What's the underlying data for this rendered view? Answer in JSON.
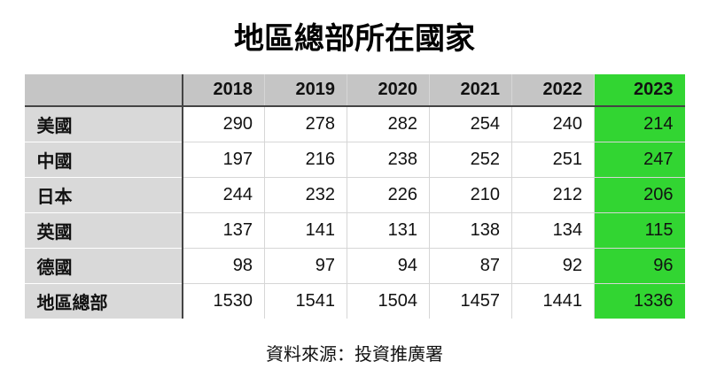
{
  "title": "地區總部所在國家",
  "source_note": "資料來源：投資推廣署",
  "colors": {
    "highlight_green": "#32d532",
    "header_gray": "#c5c5c5",
    "row_header_gray": "#d9d9d9",
    "dark_border": "#444444"
  },
  "chart_data": {
    "type": "table",
    "title": "地區總部所在國家",
    "column_headers": [
      "2018",
      "2019",
      "2020",
      "2021",
      "2022",
      "2023"
    ],
    "highlighted_column": "2023",
    "rows": [
      {
        "label": "美國",
        "values": [
          290,
          278,
          282,
          254,
          240,
          214
        ]
      },
      {
        "label": "中國",
        "values": [
          197,
          216,
          238,
          252,
          251,
          247
        ]
      },
      {
        "label": "日本",
        "values": [
          244,
          232,
          226,
          210,
          212,
          206
        ]
      },
      {
        "label": "英國",
        "values": [
          137,
          141,
          131,
          138,
          134,
          115
        ]
      },
      {
        "label": "德國",
        "values": [
          98,
          97,
          94,
          87,
          92,
          96
        ]
      },
      {
        "label": "地區總部",
        "values": [
          1530,
          1541,
          1504,
          1457,
          1441,
          1336
        ]
      }
    ],
    "source": "資料來源：投資推廣署",
    "layout": {
      "grid": "on",
      "highlight_column_color": "#32d532"
    }
  }
}
